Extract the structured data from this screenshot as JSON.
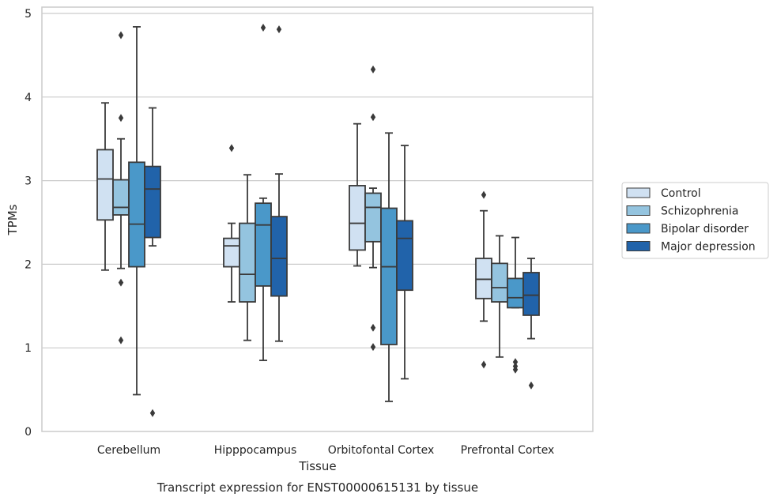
{
  "chart_data": {
    "type": "box",
    "xlabel": "Tissue",
    "ylabel": "TPMs",
    "caption": "Transcript expression for ENST00000615131 by tissue",
    "ylim": [
      0,
      5
    ],
    "yticks": [
      0,
      1,
      2,
      3,
      4,
      5
    ],
    "grid": "horizontal",
    "legend_placement": "right",
    "categories": [
      "Cerebellum",
      "Hipppocampus",
      "Orbitofontal Cortex",
      "Prefrontal Cortex"
    ],
    "series": [
      {
        "name": "Control",
        "color": "#d0e1f2",
        "boxes": [
          {
            "whislo": 1.93,
            "q1": 2.53,
            "med": 3.02,
            "q3": 3.37,
            "whishi": 3.93,
            "fliers": []
          },
          {
            "whislo": 1.55,
            "q1": 1.97,
            "med": 2.22,
            "q3": 2.31,
            "whishi": 2.49,
            "fliers": [
              3.39
            ]
          },
          {
            "whislo": 1.98,
            "q1": 2.17,
            "med": 2.49,
            "q3": 2.94,
            "whishi": 3.68,
            "fliers": []
          },
          {
            "whislo": 1.32,
            "q1": 1.59,
            "med": 1.82,
            "q3": 2.07,
            "whishi": 2.64,
            "fliers": [
              2.83,
              0.8
            ]
          }
        ]
      },
      {
        "name": "Schizophrenia",
        "color": "#94c4df",
        "boxes": [
          {
            "whislo": 1.95,
            "q1": 2.59,
            "med": 2.68,
            "q3": 3.01,
            "whishi": 3.5,
            "fliers": [
              4.74,
              3.75,
              1.78,
              1.09
            ]
          },
          {
            "whislo": 1.09,
            "q1": 1.55,
            "med": 1.88,
            "q3": 2.49,
            "whishi": 3.07,
            "fliers": []
          },
          {
            "whislo": 1.96,
            "q1": 2.27,
            "med": 2.68,
            "q3": 2.85,
            "whishi": 2.91,
            "fliers": [
              4.33,
              3.76,
              1.24,
              1.01
            ]
          },
          {
            "whislo": 0.89,
            "q1": 1.55,
            "med": 1.72,
            "q3": 2.01,
            "whishi": 2.34,
            "fliers": []
          }
        ]
      },
      {
        "name": "Bipolar disorder",
        "color": "#4a98c9",
        "boxes": [
          {
            "whislo": 0.44,
            "q1": 1.97,
            "med": 2.48,
            "q3": 3.22,
            "whishi": 4.84,
            "fliers": []
          },
          {
            "whislo": 0.85,
            "q1": 1.74,
            "med": 2.47,
            "q3": 2.73,
            "whishi": 2.79,
            "fliers": [
              4.83
            ]
          },
          {
            "whislo": 0.36,
            "q1": 1.04,
            "med": 1.97,
            "q3": 2.67,
            "whishi": 3.57,
            "fliers": []
          },
          {
            "whislo": 1.48,
            "q1": 1.48,
            "med": 1.6,
            "q3": 1.83,
            "whishi": 2.32,
            "fliers": [
              0.83,
              0.78,
              0.74
            ]
          }
        ]
      },
      {
        "name": "Major depression",
        "color": "#2163aa",
        "boxes": [
          {
            "whislo": 2.22,
            "q1": 2.32,
            "med": 2.9,
            "q3": 3.17,
            "whishi": 3.87,
            "fliers": [
              0.22
            ]
          },
          {
            "whislo": 1.08,
            "q1": 1.62,
            "med": 2.07,
            "q3": 2.57,
            "whishi": 3.08,
            "fliers": [
              4.81
            ]
          },
          {
            "whislo": 0.63,
            "q1": 1.69,
            "med": 2.31,
            "q3": 2.52,
            "whishi": 3.42,
            "fliers": []
          },
          {
            "whislo": 1.11,
            "q1": 1.39,
            "med": 1.63,
            "q3": 1.9,
            "whishi": 2.07,
            "fliers": [
              0.55
            ]
          }
        ]
      }
    ]
  }
}
